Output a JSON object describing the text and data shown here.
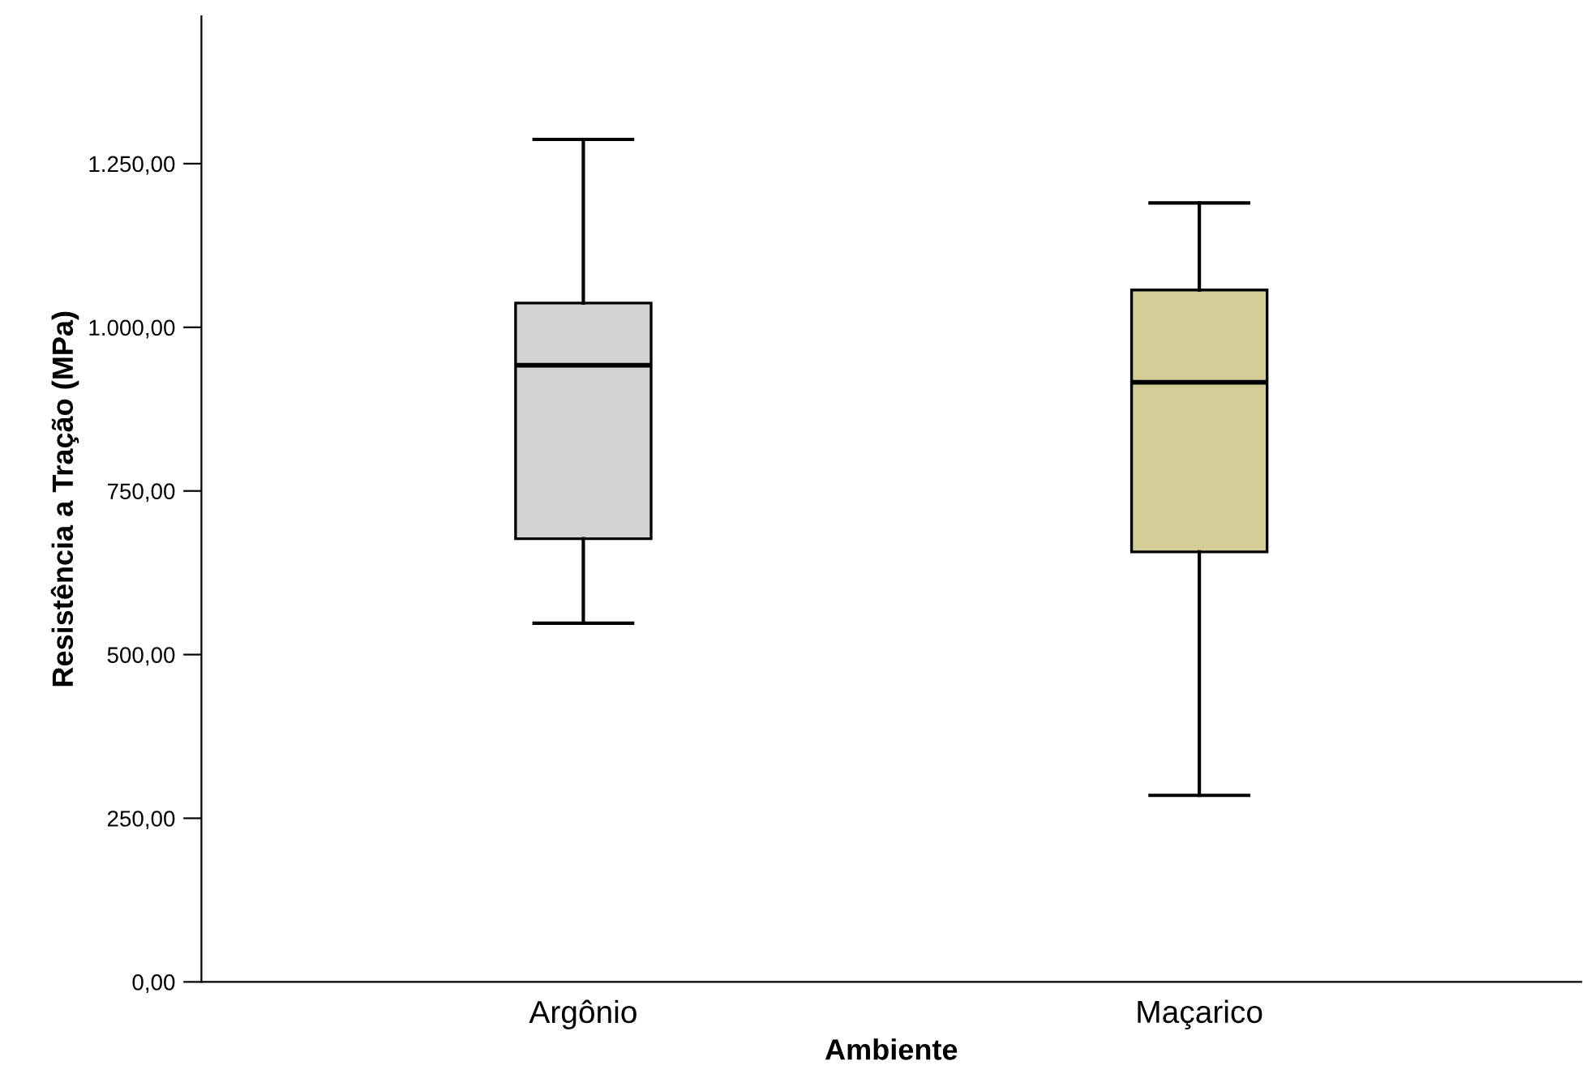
{
  "chart_data": {
    "type": "box",
    "xlabel": "Ambiente",
    "ylabel": "Resistência a Tração (MPa)",
    "categories": [
      "Argônio",
      "Maçarico"
    ],
    "colors": [
      "#d3d3d3",
      "#d3ce97"
    ],
    "boxes": [
      {
        "low": 548,
        "q1": 677,
        "median": 942,
        "q3": 1037,
        "high": 1287
      },
      {
        "low": 285,
        "q1": 657,
        "median": 916,
        "q3": 1057,
        "high": 1190
      }
    ],
    "ylim": [
      0,
      1475
    ],
    "yticks": [
      {
        "value": 0,
        "label": "0,00"
      },
      {
        "value": 250,
        "label": "250,00"
      },
      {
        "value": 500,
        "label": "500,00"
      },
      {
        "value": 750,
        "label": "750,00"
      },
      {
        "value": 1000,
        "label": "1.000,00"
      },
      {
        "value": 1250,
        "label": "1.250,00"
      }
    ],
    "grid": false,
    "legend": false
  }
}
